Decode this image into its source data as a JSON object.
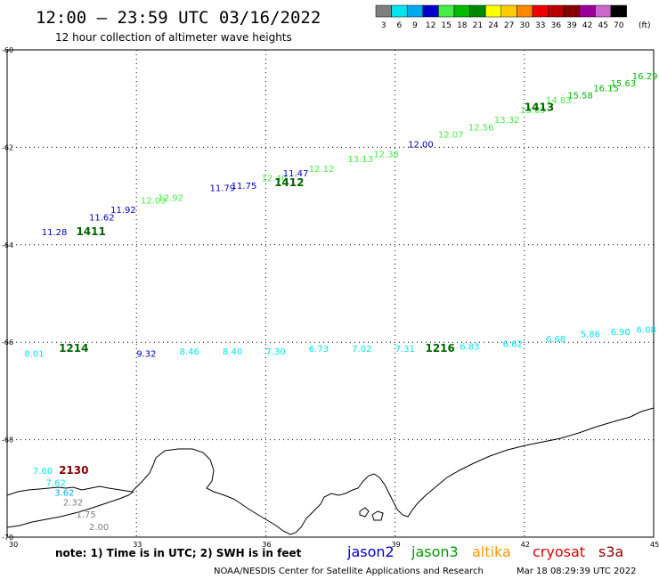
{
  "header": {
    "title": "12:00 – 23:59 UTC 03/16/2022",
    "subtitle": "12 hour collection of altimeter wave heights"
  },
  "legend": {
    "unit": "(ft)",
    "steps": [
      {
        "label": "3",
        "color": "#7f7f7f"
      },
      {
        "label": "6",
        "color": "#00e5ee"
      },
      {
        "label": "9",
        "color": "#00aaee"
      },
      {
        "label": "12",
        "color": "#0000cc"
      },
      {
        "label": "15",
        "color": "#44ee44"
      },
      {
        "label": "18",
        "color": "#00bb00"
      },
      {
        "label": "21",
        "color": "#008800"
      },
      {
        "label": "24",
        "color": "#ffff00"
      },
      {
        "label": "27",
        "color": "#ffcc00"
      },
      {
        "label": "30",
        "color": "#ff8800"
      },
      {
        "label": "33",
        "color": "#ee0000"
      },
      {
        "label": "36",
        "color": "#bb0000"
      },
      {
        "label": "39",
        "color": "#880000"
      },
      {
        "label": "42",
        "color": "#990099"
      },
      {
        "label": "45",
        "color": "#cc66cc"
      },
      {
        "label": "70",
        "color": "#000000"
      }
    ]
  },
  "footer": {
    "note": "note:  1) Time is in UTC; 2) SWH is in feet",
    "credit": "NOAA/NESDIS Center for Satellite Applications and Research",
    "timestamp": "Mar 18 08:29:39 UTC 2022",
    "missions": [
      {
        "label": "jason2",
        "color": "#0000cc"
      },
      {
        "label": "jason3",
        "color": "#009900"
      },
      {
        "label": "altika",
        "color": "#ff9900"
      },
      {
        "label": "cryosat",
        "color": "#dd0000"
      },
      {
        "label": "s3a",
        "color": "#880000"
      }
    ]
  },
  "chart_data": {
    "type": "scatter",
    "xlim": [
      30,
      45
    ],
    "ylim": [
      -70,
      -60
    ],
    "x_ticks": [
      "30",
      "33",
      "36",
      "39",
      "42",
      "45"
    ],
    "y_ticks": [
      "-60",
      "-62",
      "-64",
      "-66",
      "-68",
      "-70"
    ],
    "grid": true,
    "tracks": [
      {
        "label": "1411",
        "label_pos": [
          31.6,
          -63.8
        ],
        "label_color": "#006600",
        "points": [
          {
            "x": 30.8,
            "y": -63.8,
            "v": "11.28",
            "c": "#0000cc"
          },
          {
            "x": 31.9,
            "y": -63.5,
            "v": "11.62",
            "c": "#0000cc"
          },
          {
            "x": 32.4,
            "y": -63.35,
            "v": "11.92",
            "c": "#0000cc"
          },
          {
            "x": 33.1,
            "y": -63.15,
            "v": "12.03",
            "c": "#44ee44"
          },
          {
            "x": 33.5,
            "y": -63.1,
            "v": "12.92",
            "c": "#44ee44"
          },
          {
            "x": 34.7,
            "y": -62.9,
            "v": "11.79",
            "c": "#0000cc"
          },
          {
            "x": 35.2,
            "y": -62.85,
            "v": "11.75",
            "c": "#0000cc"
          },
          {
            "x": 35.9,
            "y": -62.7,
            "v": "12.40",
            "c": "#44ee44"
          },
          {
            "x": 36.4,
            "y": -62.6,
            "v": "11.47",
            "c": "#0000cc"
          },
          {
            "x": 37.0,
            "y": -62.5,
            "v": "12.12",
            "c": "#44ee44"
          }
        ]
      },
      {
        "label": "1412",
        "label_pos": [
          36.2,
          -62.8
        ],
        "label_color": "#006600",
        "points": [
          {
            "x": 37.9,
            "y": -62.3,
            "v": "13.13",
            "c": "#44ee44"
          },
          {
            "x": 38.5,
            "y": -62.2,
            "v": "12.38",
            "c": "#44ee44"
          },
          {
            "x": 39.3,
            "y": -62.0,
            "v": "12.00",
            "c": "#0000cc"
          },
          {
            "x": 40.0,
            "y": -61.8,
            "v": "12.07",
            "c": "#44ee44"
          },
          {
            "x": 40.7,
            "y": -61.65,
            "v": "12.56",
            "c": "#44ee44"
          },
          {
            "x": 41.3,
            "y": -61.5,
            "v": "13.32",
            "c": "#44ee44"
          },
          {
            "x": 41.9,
            "y": -61.3,
            "v": "13.69",
            "c": "#44ee44"
          }
        ]
      },
      {
        "label": "1413",
        "label_pos": [
          42.0,
          -61.25
        ],
        "label_color": "#006600",
        "points": [
          {
            "x": 42.5,
            "y": -61.1,
            "v": "14.83",
            "c": "#44ee44"
          },
          {
            "x": 43.0,
            "y": -61.0,
            "v": "15.58",
            "c": "#00bb00"
          },
          {
            "x": 43.6,
            "y": -60.85,
            "v": "16.15",
            "c": "#00bb00"
          },
          {
            "x": 44.0,
            "y": -60.75,
            "v": "15.63",
            "c": "#00bb00"
          },
          {
            "x": 44.5,
            "y": -60.6,
            "v": "16.29",
            "c": "#00bb00"
          }
        ]
      },
      {
        "label": "1214",
        "label_pos": [
          31.2,
          -66.2
        ],
        "label_color": "#006600",
        "points": [
          {
            "x": 30.4,
            "y": -66.3,
            "v": "8.01",
            "c": "#00e5ee"
          },
          {
            "x": 33.0,
            "y": -66.3,
            "v": "9.32",
            "c": "#0000cc"
          },
          {
            "x": 34.0,
            "y": -66.25,
            "v": "8.46",
            "c": "#00e5ee"
          },
          {
            "x": 35.0,
            "y": -66.25,
            "v": "8.40",
            "c": "#00e5ee"
          },
          {
            "x": 36.0,
            "y": -66.25,
            "v": "7.30",
            "c": "#00e5ee"
          },
          {
            "x": 37.0,
            "y": -66.2,
            "v": "6.73",
            "c": "#00e5ee"
          },
          {
            "x": 38.0,
            "y": -66.2,
            "v": "7.02",
            "c": "#00e5ee"
          },
          {
            "x": 39.0,
            "y": -66.2,
            "v": "7.31",
            "c": "#00e5ee"
          }
        ]
      },
      {
        "label": "1216",
        "label_pos": [
          39.7,
          -66.2
        ],
        "label_color": "#006600",
        "points": [
          {
            "x": 40.5,
            "y": -66.15,
            "v": "6.83",
            "c": "#00e5ee"
          },
          {
            "x": 41.5,
            "y": -66.1,
            "v": "6.62",
            "c": "#00e5ee"
          },
          {
            "x": 42.5,
            "y": -66.0,
            "v": "6.68",
            "c": "#00e5ee"
          },
          {
            "x": 43.3,
            "y": -65.9,
            "v": "5.86",
            "c": "#00e5ee"
          },
          {
            "x": 44.0,
            "y": -65.85,
            "v": "6.90",
            "c": "#00e5ee"
          },
          {
            "x": 44.6,
            "y": -65.8,
            "v": "6.08",
            "c": "#00e5ee"
          }
        ]
      },
      {
        "label": "2130",
        "label_pos": [
          31.2,
          -68.7
        ],
        "label_color": "#880000",
        "points": [
          {
            "x": 30.6,
            "y": -68.7,
            "v": "7.60",
            "c": "#00e5ee"
          },
          {
            "x": 30.9,
            "y": -68.95,
            "v": "7.62",
            "c": "#00e5ee"
          },
          {
            "x": 31.1,
            "y": -69.15,
            "v": "3.62",
            "c": "#00aaee"
          },
          {
            "x": 31.3,
            "y": -69.35,
            "v": "2.32",
            "c": "#7f7f7f"
          },
          {
            "x": 31.6,
            "y": -69.6,
            "v": "1.75",
            "c": "#7f7f7f"
          },
          {
            "x": 31.9,
            "y": -69.85,
            "v": "2.00",
            "c": "#7f7f7f"
          }
        ]
      }
    ]
  }
}
